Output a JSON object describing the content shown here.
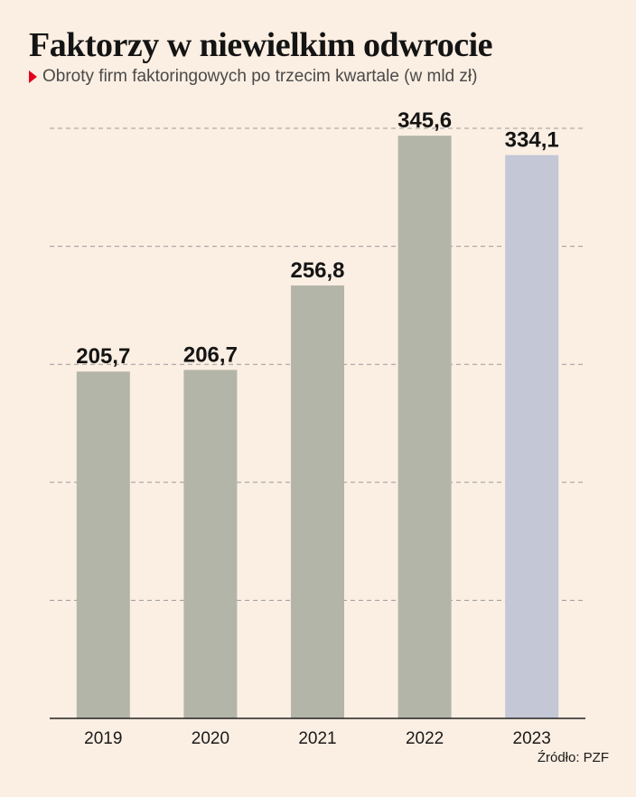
{
  "header": {
    "title": "Faktorzy w niewielkim odwrocie",
    "subtitle": "Obroty firm faktoringowych po trzecim kwartale (w mld zł)"
  },
  "source": "Źródło: PZF",
  "colors": {
    "background": "#fbeee2",
    "bar_default": "#b4b5a9",
    "bar_highlight": "#c3c7d6",
    "accent_triangle": "#e3001b"
  },
  "chart_data": {
    "type": "bar",
    "title": "Faktorzy w niewielkim odwrocie",
    "subtitle": "Obroty firm faktoringowych po trzecim kwartale (w mld zł)",
    "categories": [
      "2019",
      "2020",
      "2021",
      "2022",
      "2023"
    ],
    "values": [
      205.7,
      206.7,
      256.8,
      345.6,
      334.1
    ],
    "value_labels": [
      "205,7",
      "206,7",
      "256,8",
      "345,6",
      "334,1"
    ],
    "highlight_index": 4,
    "ylim": [
      0,
      350
    ],
    "grid": "horizontal-dashed",
    "gridlines": 6,
    "xlabel": "",
    "ylabel": ""
  }
}
